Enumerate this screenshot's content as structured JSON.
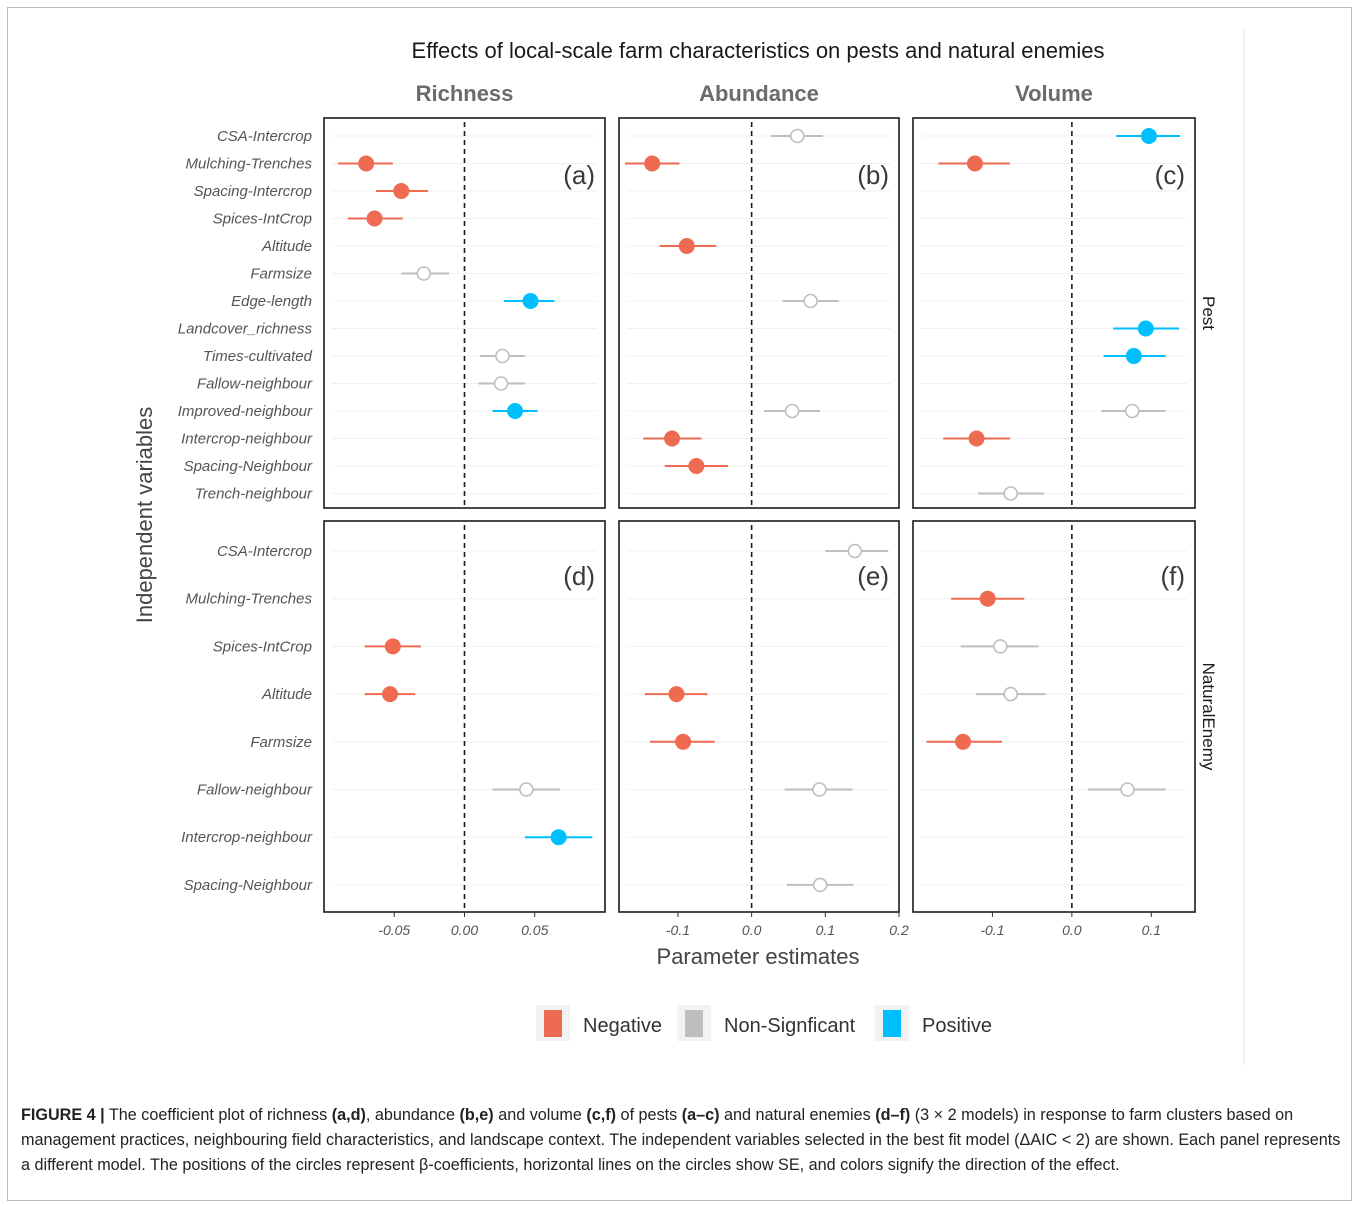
{
  "chart_data": {
    "type": "scatter",
    "subtype": "coefficient-plot-with-error-bars",
    "title": "Effects of local-scale farm characteristics on pests and natural enemies",
    "xlabel": "Parameter estimates",
    "ylabel": "Independent variables",
    "columns": [
      "Richness",
      "Abundance",
      "Volume"
    ],
    "rows": [
      "Pest",
      "NaturalEnemy"
    ],
    "legend": {
      "position": "bottom",
      "entries": [
        {
          "key": "neg",
          "label": "Negative",
          "color": "#ee6a50"
        },
        {
          "key": "ns",
          "label": "Non-Signficant",
          "color": "#bebebe"
        },
        {
          "key": "pos",
          "label": "Positive",
          "color": "#00bfff"
        }
      ]
    },
    "row_variables": {
      "Pest": [
        "CSA-Intercrop",
        "Mulching-Trenches",
        "Spacing-Intercrop",
        "Spices-IntCrop",
        "Altitude",
        "Farmsize",
        "Edge-length",
        "Landcover_richness",
        "Times-cultivated",
        "Fallow-neighbour",
        "Improved-neighbour",
        "Intercrop-neighbour",
        "Spacing-Neighbour",
        "Trench-neighbour"
      ],
      "NaturalEnemy": [
        "CSA-Intercrop",
        "Mulching-Trenches",
        "Spices-IntCrop",
        "Altitude",
        "Farmsize",
        "Fallow-neighbour",
        "Intercrop-neighbour",
        "Spacing-Neighbour"
      ]
    },
    "axes": {
      "Richness": {
        "xlim": [
          -0.1,
          0.1
        ],
        "ticks": [
          -0.05,
          0.0,
          0.05
        ],
        "tick_labels": [
          "-0.05",
          "0.00",
          "0.05"
        ]
      },
      "Abundance": {
        "xlim": [
          -0.18,
          0.2
        ],
        "ticks": [
          -0.1,
          0.0,
          0.1,
          0.2
        ],
        "tick_labels": [
          "-0.1",
          "0.0",
          "0.1",
          "0.2"
        ]
      },
      "Volume": {
        "xlim": [
          -0.2,
          0.155
        ],
        "ticks": [
          -0.1,
          0.0,
          0.1
        ],
        "tick_labels": [
          "-0.1",
          "0.0",
          "0.1"
        ]
      }
    },
    "panels": [
      {
        "label": "(a)",
        "row": "Pest",
        "column": "Richness",
        "points": [
          {
            "var": "Mulching-Trenches",
            "est": -0.07,
            "lo": -0.09,
            "hi": -0.051,
            "sig": "neg"
          },
          {
            "var": "Spacing-Intercrop",
            "est": -0.045,
            "lo": -0.063,
            "hi": -0.026,
            "sig": "neg"
          },
          {
            "var": "Spices-IntCrop",
            "est": -0.064,
            "lo": -0.083,
            "hi": -0.044,
            "sig": "neg"
          },
          {
            "var": "Farmsize",
            "est": -0.029,
            "lo": -0.045,
            "hi": -0.011,
            "sig": "ns"
          },
          {
            "var": "Edge-length",
            "est": 0.047,
            "lo": 0.028,
            "hi": 0.064,
            "sig": "pos"
          },
          {
            "var": "Times-cultivated",
            "est": 0.027,
            "lo": 0.011,
            "hi": 0.043,
            "sig": "ns"
          },
          {
            "var": "Fallow-neighbour",
            "est": 0.026,
            "lo": 0.01,
            "hi": 0.043,
            "sig": "ns"
          },
          {
            "var": "Improved-neighbour",
            "est": 0.036,
            "lo": 0.02,
            "hi": 0.052,
            "sig": "pos"
          }
        ]
      },
      {
        "label": "(b)",
        "row": "Pest",
        "column": "Abundance",
        "points": [
          {
            "var": "CSA-Intercrop",
            "est": 0.062,
            "lo": 0.026,
            "hi": 0.097,
            "sig": "ns"
          },
          {
            "var": "Mulching-Trenches",
            "est": -0.135,
            "lo": -0.172,
            "hi": -0.098,
            "sig": "neg"
          },
          {
            "var": "Altitude",
            "est": -0.088,
            "lo": -0.125,
            "hi": -0.048,
            "sig": "neg"
          },
          {
            "var": "Edge-length",
            "est": 0.08,
            "lo": 0.042,
            "hi": 0.118,
            "sig": "ns"
          },
          {
            "var": "Improved-neighbour",
            "est": 0.055,
            "lo": 0.017,
            "hi": 0.093,
            "sig": "ns"
          },
          {
            "var": "Intercrop-neighbour",
            "est": -0.108,
            "lo": -0.147,
            "hi": -0.068,
            "sig": "neg"
          },
          {
            "var": "Spacing-Neighbour",
            "est": -0.075,
            "lo": -0.118,
            "hi": -0.032,
            "sig": "neg"
          }
        ]
      },
      {
        "label": "(c)",
        "row": "Pest",
        "column": "Volume",
        "points": [
          {
            "var": "CSA-Intercrop",
            "est": 0.097,
            "lo": 0.056,
            "hi": 0.136,
            "sig": "pos"
          },
          {
            "var": "Mulching-Trenches",
            "est": -0.122,
            "lo": -0.168,
            "hi": -0.078,
            "sig": "neg"
          },
          {
            "var": "Landcover_richness",
            "est": 0.093,
            "lo": 0.052,
            "hi": 0.135,
            "sig": "pos"
          },
          {
            "var": "Times-cultivated",
            "est": 0.078,
            "lo": 0.04,
            "hi": 0.118,
            "sig": "pos"
          },
          {
            "var": "Improved-neighbour",
            "est": 0.076,
            "lo": 0.037,
            "hi": 0.118,
            "sig": "ns"
          },
          {
            "var": "Intercrop-neighbour",
            "est": -0.12,
            "lo": -0.162,
            "hi": -0.078,
            "sig": "neg"
          },
          {
            "var": "Trench-neighbour",
            "est": -0.077,
            "lo": -0.118,
            "hi": -0.035,
            "sig": "ns"
          }
        ]
      },
      {
        "label": "(d)",
        "row": "NaturalEnemy",
        "column": "Richness",
        "points": [
          {
            "var": "Spices-IntCrop",
            "est": -0.051,
            "lo": -0.071,
            "hi": -0.031,
            "sig": "neg"
          },
          {
            "var": "Altitude",
            "est": -0.053,
            "lo": -0.071,
            "hi": -0.035,
            "sig": "neg"
          },
          {
            "var": "Fallow-neighbour",
            "est": 0.044,
            "lo": 0.02,
            "hi": 0.068,
            "sig": "ns"
          },
          {
            "var": "Intercrop-neighbour",
            "est": 0.067,
            "lo": 0.043,
            "hi": 0.091,
            "sig": "pos"
          }
        ]
      },
      {
        "label": "(e)",
        "row": "NaturalEnemy",
        "column": "Abundance",
        "points": [
          {
            "var": "CSA-Intercrop",
            "est": 0.14,
            "lo": 0.1,
            "hi": 0.185,
            "sig": "ns"
          },
          {
            "var": "Altitude",
            "est": -0.102,
            "lo": -0.145,
            "hi": -0.06,
            "sig": "neg"
          },
          {
            "var": "Farmsize",
            "est": -0.093,
            "lo": -0.138,
            "hi": -0.05,
            "sig": "neg"
          },
          {
            "var": "Fallow-neighbour",
            "est": 0.092,
            "lo": 0.045,
            "hi": 0.137,
            "sig": "ns"
          },
          {
            "var": "Spacing-Neighbour",
            "est": 0.093,
            "lo": 0.048,
            "hi": 0.138,
            "sig": "ns"
          }
        ]
      },
      {
        "label": "(f)",
        "row": "NaturalEnemy",
        "column": "Volume",
        "points": [
          {
            "var": "Mulching-Trenches",
            "est": -0.106,
            "lo": -0.152,
            "hi": -0.06,
            "sig": "neg"
          },
          {
            "var": "CSA-Intercrop_skip",
            "est": null,
            "lo": null,
            "hi": null,
            "sig": "none"
          },
          {
            "var": "Spices-IntCrop",
            "est": -0.09,
            "lo": -0.14,
            "hi": -0.042,
            "sig": "ns"
          },
          {
            "var": "Altitude",
            "est": -0.077,
            "lo": -0.121,
            "hi": -0.033,
            "sig": "ns"
          },
          {
            "var": "Farmsize",
            "est": -0.137,
            "lo": -0.183,
            "hi": -0.088,
            "sig": "neg"
          },
          {
            "var": "Fallow-neighbour",
            "est": 0.07,
            "lo": 0.02,
            "hi": 0.118,
            "sig": "ns"
          }
        ]
      }
    ]
  },
  "caption": {
    "figure_label": "FIGURE 4 |",
    "segments": [
      {
        "t": " The coefficient plot of richness ",
        "b": false
      },
      {
        "t": "(a,d)",
        "b": true
      },
      {
        "t": ", abundance ",
        "b": false
      },
      {
        "t": "(b,e)",
        "b": true
      },
      {
        "t": " and volume ",
        "b": false
      },
      {
        "t": "(c,f)",
        "b": true
      },
      {
        "t": " of pests ",
        "b": false
      },
      {
        "t": "(a–c)",
        "b": true
      },
      {
        "t": " and natural enemies ",
        "b": false
      },
      {
        "t": "(d–f)",
        "b": true
      },
      {
        "t": " (3 × 2 models) in response to farm clusters based on management practices, neighbouring field characteristics, and landscape context. The independent variables selected in the best fit model (ΔAIC < 2) are shown. Each panel represents a different model. The positions of the circles represent β-coefficients, horizontal lines on the circles show SE, and colors signify the direction of the effect.",
        "b": false
      }
    ]
  }
}
